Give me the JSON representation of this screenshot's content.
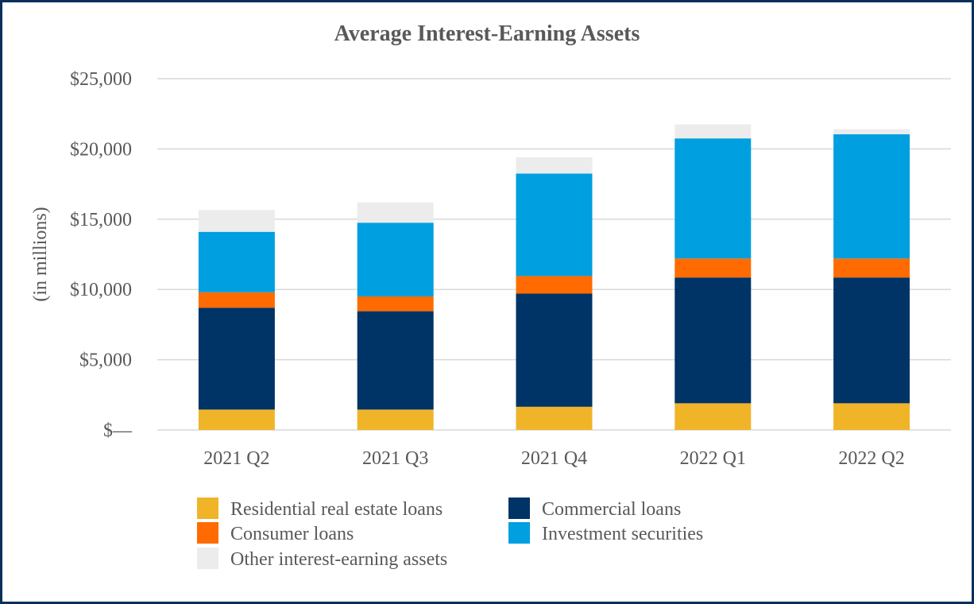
{
  "chart_data": {
    "type": "bar",
    "stacked": true,
    "title": "Average Interest-Earning Assets",
    "xlabel": "",
    "ylabel": "(in millions)",
    "ylim": [
      0,
      25000
    ],
    "yticks": [
      0,
      5000,
      10000,
      15000,
      20000,
      25000
    ],
    "ytick_labels": [
      "$—",
      "$5,000",
      "$10,000",
      "$15,000",
      "$20,000",
      "$25,000"
    ],
    "grid": true,
    "legend_position": "bottom",
    "categories": [
      "2021 Q2",
      "2021 Q3",
      "2021 Q4",
      "2022 Q1",
      "2022 Q2"
    ],
    "series": [
      {
        "name": "Residential real estate loans",
        "color": "#f0b429",
        "values": [
          1450,
          1450,
          1650,
          1900,
          1900
        ]
      },
      {
        "name": "Commercial loans",
        "color": "#003366",
        "values": [
          7250,
          7000,
          8050,
          8950,
          8950
        ]
      },
      {
        "name": "Consumer loans",
        "color": "#ff6b00",
        "values": [
          1100,
          1050,
          1250,
          1350,
          1350
        ]
      },
      {
        "name": "Investment securities",
        "color": "#009fdf",
        "values": [
          4300,
          5250,
          7300,
          8550,
          8850
        ]
      },
      {
        "name": "Other interest-earning assets",
        "color": "#ececec",
        "values": [
          1550,
          1450,
          1150,
          1000,
          350
        ]
      }
    ]
  }
}
